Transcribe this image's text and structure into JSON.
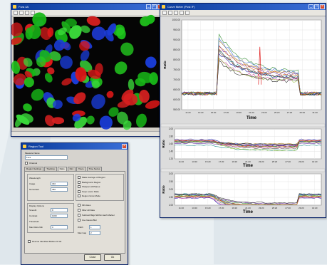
{
  "image_window": {
    "title": "Fura 4A",
    "min_icon": "minimize-icon",
    "max_icon": "maximize-icon",
    "close_icon": "close-icon",
    "tools": [
      "select-icon",
      "zoom-in-icon",
      "zoom-out-icon",
      "pan-icon"
    ],
    "status_ticks": [
      "|",
      "|",
      "|",
      "|",
      "|"
    ]
  },
  "plot_window": {
    "title": "Curve Meter (Post IF)",
    "tools": [
      "open-icon",
      "save-icon",
      "print-icon",
      "copy-icon",
      "export-icon"
    ],
    "panels": [
      {
        "y_ticks": [
          "1000.00",
          "950.00",
          "900.00",
          "850.00",
          "800.00",
          "750.00",
          "700.00",
          "650.00",
          "600.00",
          "550.00"
        ],
        "y_label": "Ratio",
        "x_ticks": [
          "11:20",
          "13:20",
          "15:20",
          "17:20",
          "19:20",
          "21:20",
          "23:20",
          "25:20",
          "27:20",
          "29:20",
          "31:20"
        ],
        "x_label": "Time"
      },
      {
        "y_ticks": [
          "2.00",
          "1.80",
          "1.60",
          "1.40",
          "1.20"
        ],
        "y_label": "Ratio",
        "x_ticks": [
          "11:20",
          "13:20",
          "15:20",
          "17:20",
          "19:20",
          "21:20",
          "23:20",
          "25:20",
          "27:20",
          "29:20",
          "31:20"
        ],
        "x_label": "Time"
      },
      {
        "y_ticks": [
          "3.00",
          "2.50",
          "2.00",
          "1.50",
          "1.00"
        ],
        "y_label": "Ratio",
        "x_ticks": [
          "11:20",
          "13:20",
          "15:20",
          "17:20",
          "19:20",
          "21:20",
          "23:20",
          "25:20",
          "27:20",
          "29:20",
          "31:20"
        ],
        "x_label": "Time"
      }
    ]
  },
  "dialog": {
    "title": "Region Tool",
    "name_label": "Measure Name",
    "name_value": "Fura",
    "channel_check": "Channel",
    "tabs": [
      "Region Settings",
      "Tracking",
      "Ratio",
      "Dim",
      "Trace",
      "Time Series"
    ],
    "active_tab": 2,
    "left": {
      "rows": [
        {
          "label": "Wavelength",
          "value": ""
        },
        {
          "label": "Image",
          "value": "340"
        },
        {
          "label": "Numerator",
          "value": "380"
        }
      ]
    },
    "right": {
      "options": [
        "Make Average of Region",
        "Background Region",
        "Sharpen All Planes",
        "Keep Lower Ratio",
        "Region Grow Mode"
      ]
    },
    "smooth": {
      "title": "Display Options",
      "rows": [
        {
          "label": "Smooth",
          "value": "8"
        },
        {
          "label": "Contrast",
          "value": "1000"
        },
        {
          "label": "Threshold",
          "value": ""
        },
        {
          "label": "Max Ratio Min",
          "value": "0"
        }
      ]
    },
    "filter_checks": [
      "Fill Holes",
      "Filter All Data",
      "Subtract Bkgd Within Each Marker",
      "Use Gauss Blur"
    ],
    "width": {
      "label": "Width",
      "value": "1"
    },
    "max_gap": {
      "label": "Max Gap",
      "value": "2"
    },
    "bottom_check": "Rescue Identified Bottles Of All",
    "ok": "Close",
    "cancel": "Ok"
  }
}
